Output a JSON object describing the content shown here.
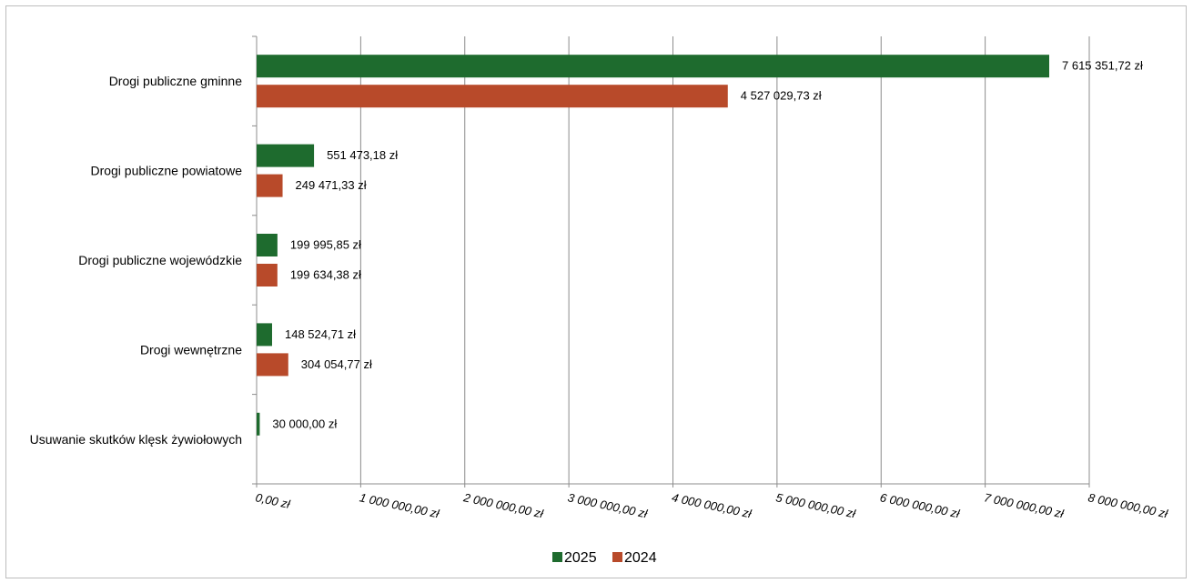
{
  "chart_data": {
    "type": "bar",
    "orientation": "horizontal",
    "categories": [
      "Drogi publiczne gminne",
      "Drogi publiczne powiatowe",
      "Drogi publiczne wojewódzkie",
      "Drogi wewnętrzne",
      "Usuwanie skutków klęsk żywiołowych"
    ],
    "series": [
      {
        "name": "2025",
        "color": "#1e6b2e",
        "values": [
          7615351.72,
          551473.18,
          199995.85,
          148524.71,
          30000.0
        ],
        "labels": [
          "7 615 351,72 zł",
          "551 473,18 zł",
          "199 995,85 zł",
          "148 524,71 zł",
          "30 000,00 zł"
        ]
      },
      {
        "name": "2024",
        "color": "#b84a2a",
        "values": [
          4527029.73,
          249471.33,
          199634.38,
          304054.77,
          null
        ],
        "labels": [
          "4 527 029,73 zł",
          "249 471,33 zł",
          "199 634,38 zł",
          "304 054,77 zł",
          null
        ]
      }
    ],
    "xlim": [
      0,
      8000000
    ],
    "x_ticks": [
      0,
      1000000,
      2000000,
      3000000,
      4000000,
      5000000,
      6000000,
      7000000,
      8000000
    ],
    "x_tick_labels": [
      "0,00 zł",
      "1 000 000,00 zł",
      "2 000 000,00 zł",
      "3 000 000,00 zł",
      "4 000 000,00 zł",
      "5 000 000,00 zł",
      "6 000 000,00 zł",
      "7 000 000,00 zł",
      "8 000 000,00 zł"
    ],
    "grid": true,
    "legend": "bottom",
    "gridline_color": "#8c8c8c"
  }
}
